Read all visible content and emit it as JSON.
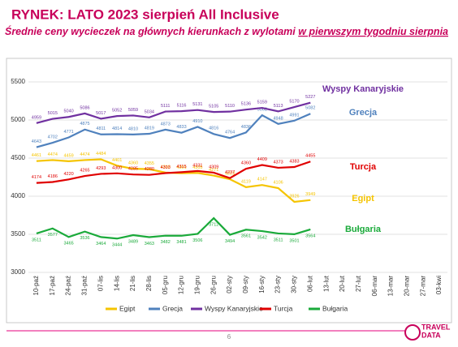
{
  "chart_data": {
    "type": "line",
    "title": "RYNEK: LATO 2023 sierpień All Inclusive",
    "subtitle": [
      "Średnie ceny wycieczek na głównych kierunkach z wylotami ",
      "w pierwszym tygodniu sierpnia"
    ],
    "categories": [
      "10-paź",
      "17-paź",
      "24-paź",
      "31-paź",
      "07-lis",
      "14-lis",
      "21-lis",
      "28-lis",
      "05-gru",
      "12-gru",
      "19-gru",
      "26-gru",
      "02-sty",
      "09-sty",
      "16-sty",
      "23-sty",
      "30-sty",
      "06-lut",
      "13-lut",
      "20-lut",
      "27-lut",
      "06-mar",
      "13-mar",
      "20-mar",
      "27-mar",
      "03-kwi"
    ],
    "series": [
      {
        "name": "Egipt",
        "color": "#f5c400",
        "values": [
          4461,
          4474,
          4459,
          4474,
          4484,
          4401,
          4360,
          4355,
          4310,
          4301,
          4305,
          4271,
          4223,
          4119,
          4147,
          4106,
          3926,
          3949,
          null,
          null,
          null,
          null,
          null,
          null,
          null,
          null
        ]
      },
      {
        "name": "Grecja",
        "color": "#4f81bd",
        "values": [
          4643,
          4702,
          4771,
          4875,
          4811,
          4814,
          4810,
          4819,
          4873,
          4833,
          4910,
          4816,
          4764,
          4836,
          5062,
          4948,
          4991,
          5082,
          null,
          null,
          null,
          null,
          null,
          null,
          null,
          null
        ]
      },
      {
        "name": "Wyspy Kanaryjskie",
        "color": "#7030a0",
        "values": [
          4959,
          5015,
          5040,
          5086,
          5017,
          5052,
          5059,
          5034,
          5111,
          5116,
          5131,
          5105,
          5110,
          5136,
          5159,
          5113,
          5170,
          5227,
          null,
          null,
          null,
          null,
          null,
          null,
          null,
          null
        ]
      },
      {
        "name": "Turcja",
        "color": "#e00000",
        "values": [
          4174,
          4186,
          4220,
          4265,
          4293,
          4300,
          4285,
          4280,
          4303,
          4315,
          4331,
          4309,
          4237,
          4360,
          4409,
          4373,
          4383,
          4455,
          null,
          null,
          null,
          null,
          null,
          null,
          null,
          null
        ]
      },
      {
        "name": "Bułgaria",
        "color": "#1aaa3a",
        "values": [
          3511,
          3577,
          3465,
          3536,
          3464,
          3444,
          3489,
          3463,
          3482,
          3481,
          3506,
          3712,
          3494,
          3561,
          3542,
          3511,
          3501,
          3564,
          null,
          null,
          null,
          null,
          null,
          null,
          null,
          null
        ]
      }
    ],
    "ylim": [
      3000,
      5500
    ],
    "yticks": [
      3000,
      3500,
      4000,
      4500,
      5000,
      5500
    ],
    "grid": true,
    "page_number": "6",
    "logo": [
      "TRAVEL",
      "DATA"
    ]
  }
}
